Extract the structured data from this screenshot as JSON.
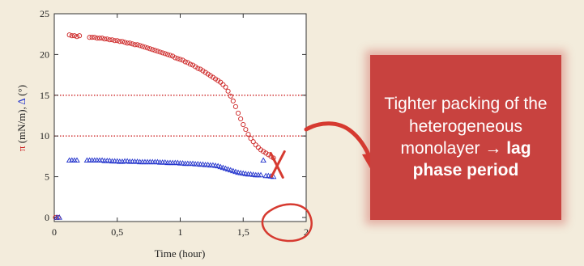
{
  "chart_data": {
    "type": "scatter",
    "xlabel": "Time (hour)",
    "ylabel_parts": [
      {
        "text": "π",
        "color": "#cc2222"
      },
      {
        "text": " (mN/m), ",
        "color": "#222222"
      },
      {
        "text": "Δ",
        "color": "#2233cc"
      },
      {
        "text": " (°)",
        "color": "#222222"
      }
    ],
    "xlim": [
      0,
      2
    ],
    "ylim": [
      -0.5,
      25
    ],
    "x_ticks": [
      0,
      0.5,
      1,
      1.5,
      2
    ],
    "x_tick_labels": [
      "0",
      "0,5",
      "1",
      "1,5",
      "2"
    ],
    "y_ticks": [
      0,
      5,
      10,
      15,
      20,
      25
    ],
    "y_tick_labels": [
      "0",
      "5",
      "10",
      "15",
      "20",
      "25"
    ],
    "reference_lines": [
      {
        "y": 15,
        "color": "#cc2222",
        "style": "dotted"
      },
      {
        "y": 10,
        "color": "#cc2222",
        "style": "dotted"
      }
    ],
    "series": [
      {
        "marker": "circle",
        "color": "#cc2222",
        "points": [
          [
            0.01,
            0
          ],
          [
            0.03,
            0
          ],
          [
            0.12,
            22.4
          ],
          [
            0.14,
            22.3
          ],
          [
            0.16,
            22.3
          ],
          [
            0.18,
            22.2
          ],
          [
            0.2,
            22.3
          ],
          [
            0.28,
            22.1
          ],
          [
            0.3,
            22.1
          ],
          [
            0.32,
            22.1
          ],
          [
            0.34,
            22
          ],
          [
            0.36,
            22
          ],
          [
            0.38,
            22
          ],
          [
            0.4,
            21.9
          ],
          [
            0.42,
            21.9
          ],
          [
            0.44,
            21.8
          ],
          [
            0.46,
            21.8
          ],
          [
            0.48,
            21.7
          ],
          [
            0.5,
            21.7
          ],
          [
            0.52,
            21.6
          ],
          [
            0.54,
            21.6
          ],
          [
            0.56,
            21.5
          ],
          [
            0.58,
            21.4
          ],
          [
            0.6,
            21.4
          ],
          [
            0.62,
            21.3
          ],
          [
            0.64,
            21.2
          ],
          [
            0.66,
            21.2
          ],
          [
            0.68,
            21.1
          ],
          [
            0.7,
            21
          ],
          [
            0.72,
            20.9
          ],
          [
            0.74,
            20.8
          ],
          [
            0.76,
            20.7
          ],
          [
            0.78,
            20.6
          ],
          [
            0.8,
            20.5
          ],
          [
            0.82,
            20.4
          ],
          [
            0.84,
            20.3
          ],
          [
            0.86,
            20.2
          ],
          [
            0.88,
            20.1
          ],
          [
            0.9,
            20
          ],
          [
            0.92,
            19.9
          ],
          [
            0.94,
            19.8
          ],
          [
            0.96,
            19.6
          ],
          [
            0.98,
            19.5
          ],
          [
            1,
            19.4
          ],
          [
            1.02,
            19.3
          ],
          [
            1.04,
            19.1
          ],
          [
            1.06,
            19
          ],
          [
            1.08,
            18.8
          ],
          [
            1.1,
            18.7
          ],
          [
            1.12,
            18.5
          ],
          [
            1.14,
            18.3
          ],
          [
            1.16,
            18.2
          ],
          [
            1.18,
            18
          ],
          [
            1.2,
            17.8
          ],
          [
            1.22,
            17.6
          ],
          [
            1.24,
            17.4
          ],
          [
            1.26,
            17.2
          ],
          [
            1.28,
            17
          ],
          [
            1.3,
            16.8
          ],
          [
            1.32,
            16.6
          ],
          [
            1.34,
            16.3
          ],
          [
            1.36,
            16
          ],
          [
            1.38,
            15.5
          ],
          [
            1.4,
            14.9
          ],
          [
            1.42,
            14.3
          ],
          [
            1.44,
            13.6
          ],
          [
            1.46,
            12.8
          ],
          [
            1.48,
            12.1
          ],
          [
            1.5,
            11.4
          ],
          [
            1.52,
            10.8
          ],
          [
            1.54,
            10.2
          ],
          [
            1.56,
            9.7
          ],
          [
            1.58,
            9.3
          ],
          [
            1.6,
            8.9
          ],
          [
            1.62,
            8.6
          ],
          [
            1.64,
            8.3
          ],
          [
            1.66,
            8.1
          ],
          [
            1.68,
            7.9
          ],
          [
            1.7,
            7.7
          ],
          [
            1.72,
            7.5
          ],
          [
            1.74,
            7.3
          ]
        ]
      },
      {
        "marker": "triangle",
        "color": "#2233cc",
        "points": [
          [
            0.02,
            0
          ],
          [
            0.04,
            0
          ],
          [
            0.12,
            7
          ],
          [
            0.14,
            7
          ],
          [
            0.16,
            7
          ],
          [
            0.18,
            7
          ],
          [
            0.26,
            7
          ],
          [
            0.28,
            7
          ],
          [
            0.3,
            7
          ],
          [
            0.32,
            7
          ],
          [
            0.34,
            7
          ],
          [
            0.36,
            7
          ],
          [
            0.38,
            7
          ],
          [
            0.4,
            6.95
          ],
          [
            0.42,
            6.95
          ],
          [
            0.44,
            6.95
          ],
          [
            0.46,
            6.9
          ],
          [
            0.48,
            6.9
          ],
          [
            0.5,
            6.9
          ],
          [
            0.52,
            6.85
          ],
          [
            0.54,
            6.85
          ],
          [
            0.56,
            6.9
          ],
          [
            0.58,
            6.9
          ],
          [
            0.6,
            6.85
          ],
          [
            0.62,
            6.85
          ],
          [
            0.64,
            6.85
          ],
          [
            0.66,
            6.85
          ],
          [
            0.68,
            6.8
          ],
          [
            0.7,
            6.8
          ],
          [
            0.72,
            6.8
          ],
          [
            0.74,
            6.8
          ],
          [
            0.76,
            6.8
          ],
          [
            0.78,
            6.8
          ],
          [
            0.8,
            6.8
          ],
          [
            0.82,
            6.8
          ],
          [
            0.84,
            6.75
          ],
          [
            0.86,
            6.75
          ],
          [
            0.88,
            6.75
          ],
          [
            0.9,
            6.7
          ],
          [
            0.92,
            6.7
          ],
          [
            0.94,
            6.7
          ],
          [
            0.96,
            6.7
          ],
          [
            0.98,
            6.7
          ],
          [
            1,
            6.65
          ],
          [
            1.02,
            6.65
          ],
          [
            1.04,
            6.6
          ],
          [
            1.06,
            6.6
          ],
          [
            1.08,
            6.6
          ],
          [
            1.1,
            6.6
          ],
          [
            1.12,
            6.55
          ],
          [
            1.14,
            6.55
          ],
          [
            1.16,
            6.5
          ],
          [
            1.18,
            6.5
          ],
          [
            1.2,
            6.45
          ],
          [
            1.22,
            6.45
          ],
          [
            1.24,
            6.4
          ],
          [
            1.26,
            6.4
          ],
          [
            1.28,
            6.35
          ],
          [
            1.3,
            6.3
          ],
          [
            1.32,
            6.2
          ],
          [
            1.34,
            6.1
          ],
          [
            1.36,
            6
          ],
          [
            1.38,
            5.9
          ],
          [
            1.4,
            5.8
          ],
          [
            1.42,
            5.7
          ],
          [
            1.44,
            5.6
          ],
          [
            1.46,
            5.5
          ],
          [
            1.48,
            5.45
          ],
          [
            1.5,
            5.4
          ],
          [
            1.52,
            5.35
          ],
          [
            1.54,
            5.3
          ],
          [
            1.56,
            5.3
          ],
          [
            1.58,
            5.25
          ],
          [
            1.6,
            5.2
          ],
          [
            1.62,
            5.2
          ],
          [
            1.64,
            5.2
          ],
          [
            1.66,
            7
          ],
          [
            1.68,
            5.1
          ],
          [
            1.7,
            5.1
          ],
          [
            1.72,
            5.05
          ],
          [
            1.74,
            5
          ]
        ]
      }
    ],
    "annotations": [
      {
        "type": "cross",
        "x": 1.77,
        "y": 6.5,
        "color": "#d63a30"
      },
      {
        "type": "circle-highlight",
        "x": 1.8,
        "y": -0.5,
        "color": "#d63a30"
      },
      {
        "type": "curved-arrow",
        "color": "#d63a30"
      }
    ]
  },
  "callout": {
    "text_plain": "Tighter packing of the heterogeneous monolayer → ",
    "text_bold": "lag phase period",
    "background": "#c8423f",
    "text_color": "#ffffff"
  },
  "colors": {
    "background": "#f3ecdc",
    "plot_background": "#ffffff",
    "accent": "#d63a30"
  }
}
